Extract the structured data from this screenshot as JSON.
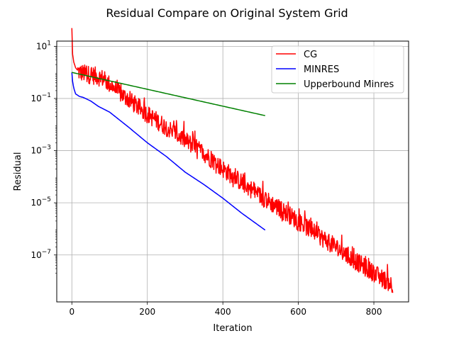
{
  "chart_data": {
    "type": "line",
    "title": "Residual Compare on Original System Grid",
    "xlabel": "Iteration",
    "ylabel": "Residual",
    "yscale": "log",
    "xlim": [
      -40,
      892
    ],
    "ylim_log10": [
      -8.8,
      1.2
    ],
    "grid": true,
    "legend_position": "top-right",
    "x_ticks": [
      {
        "value": 0,
        "label": "0"
      },
      {
        "value": 200,
        "label": "200"
      },
      {
        "value": 400,
        "label": "400"
      },
      {
        "value": 600,
        "label": "600"
      },
      {
        "value": 800,
        "label": "800"
      }
    ],
    "y_ticks": [
      {
        "exp": 1,
        "base": "10",
        "sup": "1"
      },
      {
        "exp": -1,
        "base": "10",
        "sup": "−1"
      },
      {
        "exp": -3,
        "base": "10",
        "sup": "−3"
      },
      {
        "exp": -5,
        "base": "10",
        "sup": "−5"
      },
      {
        "exp": -7,
        "base": "10",
        "sup": "−7"
      }
    ],
    "series": [
      {
        "name": "CG",
        "color": "#ff0000",
        "noisy": true,
        "x": [
          0,
          2,
          5,
          10,
          20,
          40,
          60,
          80,
          100,
          130,
          160,
          200,
          250,
          300,
          350,
          400,
          450,
          500,
          550,
          600,
          650,
          700,
          750,
          800,
          850
        ],
        "y": [
          50,
          5,
          2.5,
          1.5,
          1.0,
          0.85,
          0.75,
          0.6,
          0.35,
          0.15,
          0.07,
          0.025,
          0.008,
          0.0025,
          0.0008,
          0.0002,
          6e-05,
          1.8e-05,
          6e-06,
          2e-06,
          6e-07,
          2e-07,
          6e-08,
          2e-08,
          7e-09
        ]
      },
      {
        "name": "MINRES",
        "color": "#0000ff",
        "noisy": false,
        "x": [
          0,
          2,
          5,
          10,
          20,
          30,
          50,
          70,
          100,
          150,
          200,
          250,
          300,
          350,
          400,
          450,
          512
        ],
        "y": [
          1.0,
          0.45,
          0.25,
          0.15,
          0.12,
          0.11,
          0.08,
          0.05,
          0.03,
          0.008,
          0.002,
          0.0006,
          0.00015,
          5e-05,
          1.5e-05,
          4e-06,
          9e-07
        ]
      },
      {
        "name": "Upperbound Minres",
        "color": "#008000",
        "noisy": false,
        "x": [
          0,
          512
        ],
        "y": [
          1.0,
          0.022
        ]
      }
    ]
  }
}
